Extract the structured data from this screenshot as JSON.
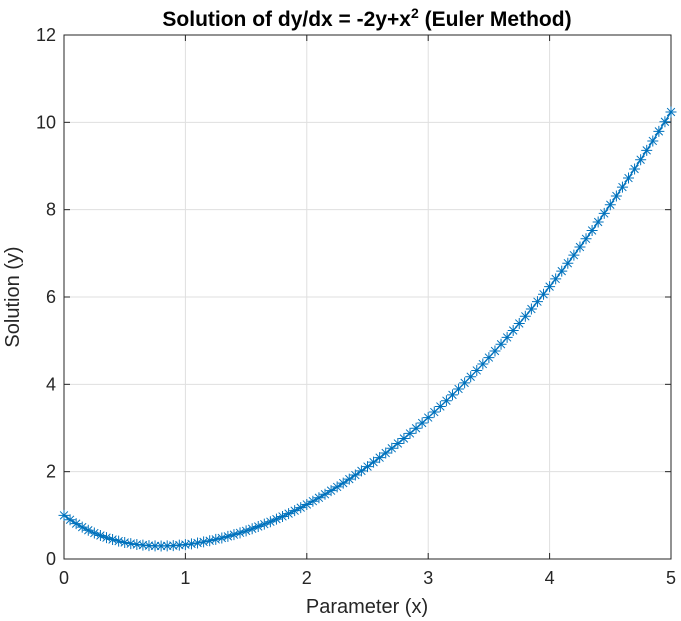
{
  "chart_data": {
    "type": "line",
    "title": {
      "main": "Solution of dy/dx = -2y+x",
      "superscript": "2",
      "suffix": " (Euler Method)"
    },
    "xlabel": "Parameter (x)",
    "ylabel": "Solution (y)",
    "xlim": [
      0,
      5
    ],
    "ylim": [
      0,
      12
    ],
    "xticks": [
      "0",
      "1",
      "2",
      "3",
      "4",
      "5"
    ],
    "yticks": [
      "0",
      "2",
      "4",
      "6",
      "8",
      "10",
      "12"
    ],
    "grid": true,
    "marker": "asterisk",
    "color": "#0072bd",
    "series": [
      {
        "x0": 0,
        "y0": 1,
        "step": 0.05,
        "x_end": 5,
        "approx_final_y": 10.25
      }
    ]
  }
}
